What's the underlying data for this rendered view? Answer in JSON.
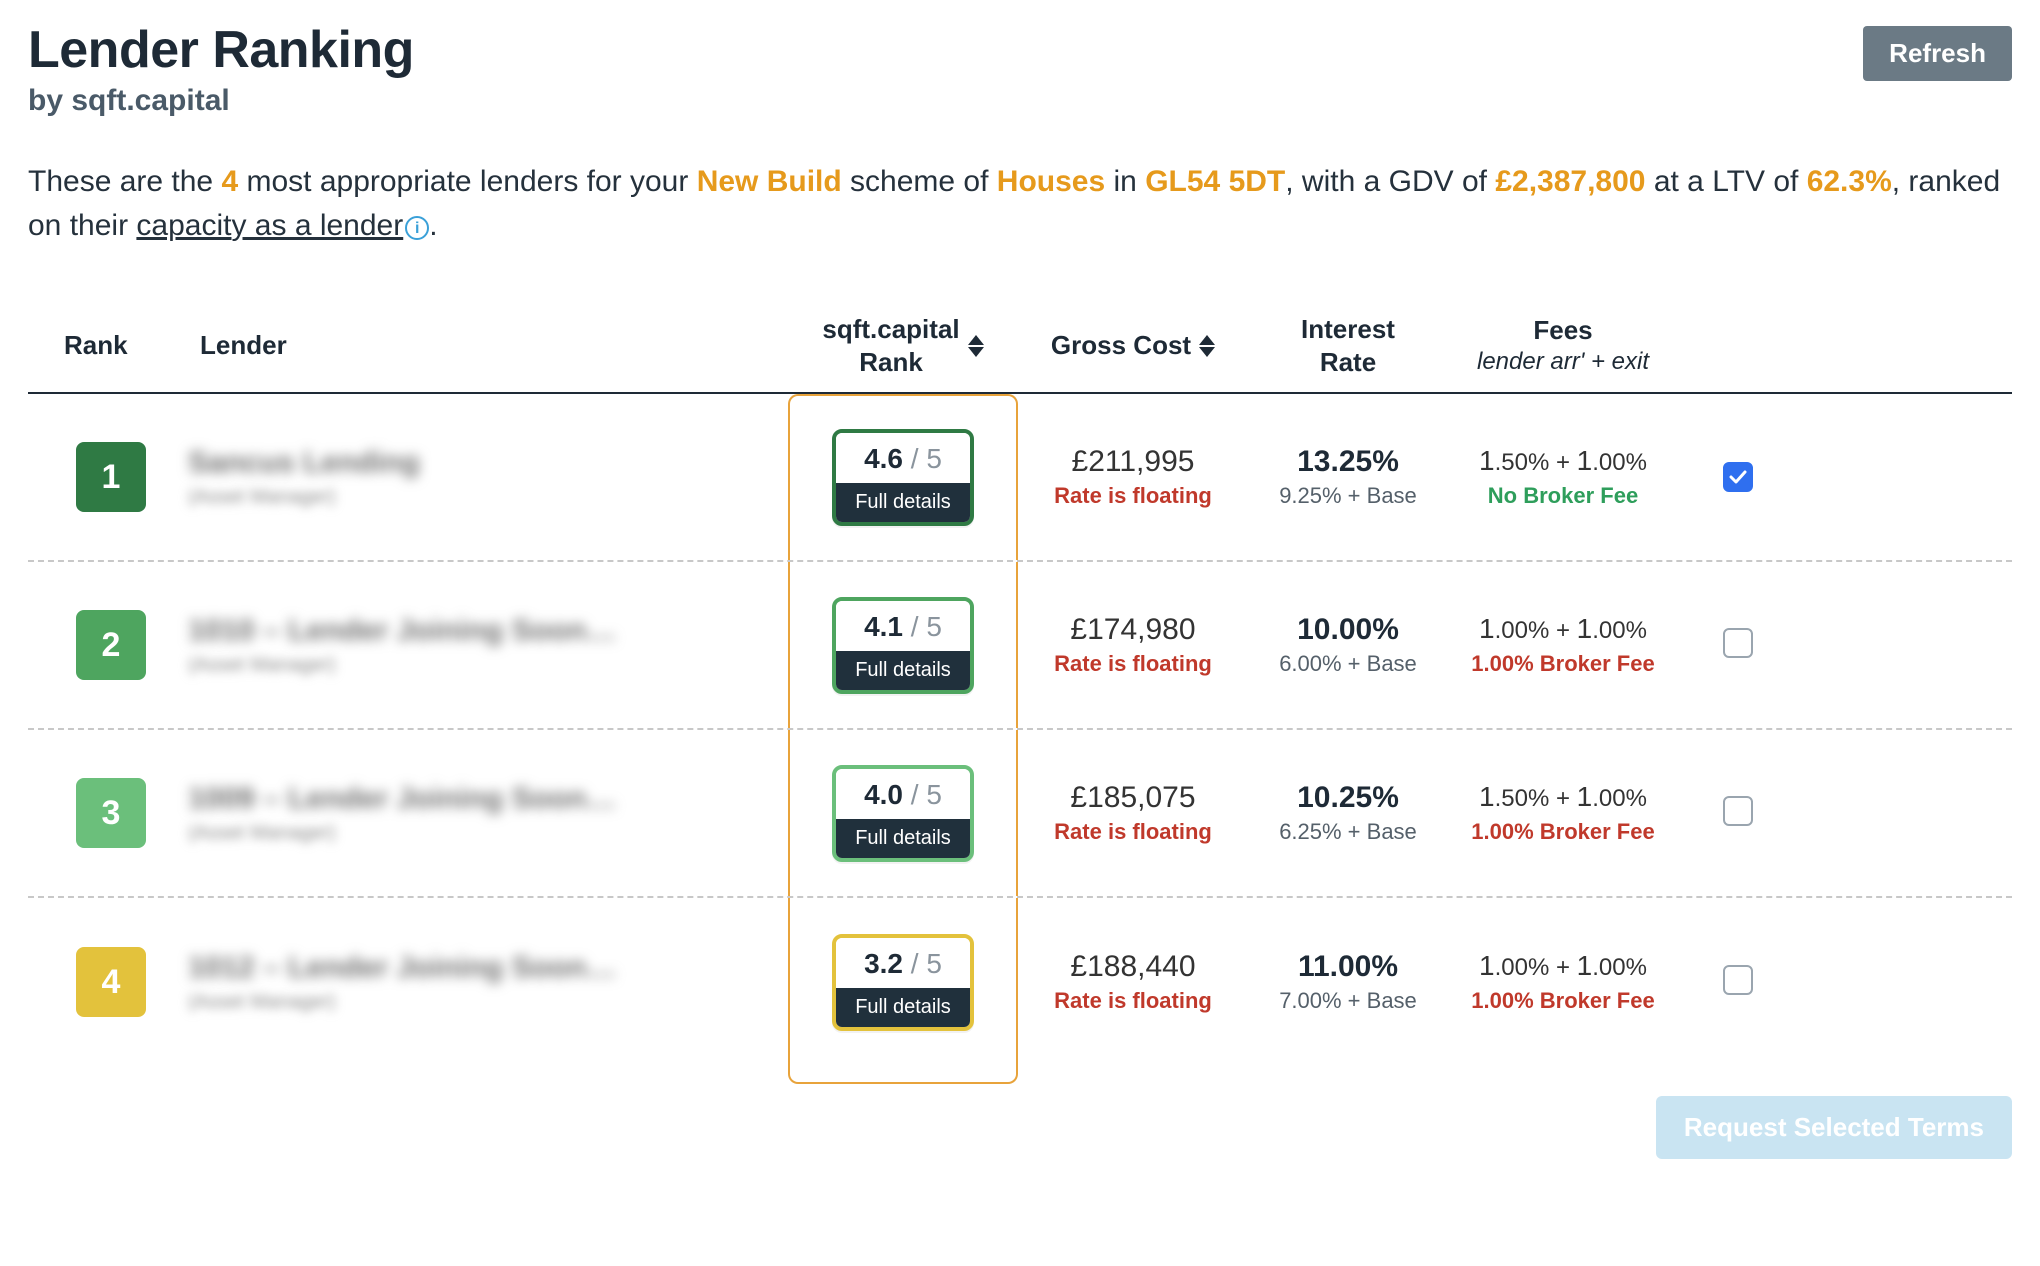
{
  "colors": {
    "text": "#1e2a36",
    "subtext": "#4a5a68",
    "highlight": "#e69a1c",
    "refresh_bg": "#6b7a85",
    "danger": "#c0392b",
    "ok": "#2e9e5b",
    "col_border": "#e8a33b",
    "rank_badge": [
      "#2f7a44",
      "#4ea55f",
      "#6bbf7b",
      "#e3c23c"
    ],
    "card_border": [
      "#2f7a44",
      "#4ea55f",
      "#6bbf7b",
      "#e3c23c"
    ],
    "request_bg": "#c9e4f2",
    "checkbox_on": "#2f6fef"
  },
  "header": {
    "title": "Lender Ranking",
    "subtitle": "by sqft.capital",
    "refresh": "Refresh"
  },
  "intro": {
    "pre": "These are the ",
    "count": "4",
    "mid1": " most appropriate lenders for your ",
    "scheme": "New Build",
    "mid2": " scheme of ",
    "unit": "Houses",
    "mid3": " in ",
    "postcode": "GL54 5DT",
    "mid4": ", with a GDV of ",
    "gdv": "£2,387,800",
    "mid5": " at a LTV of ",
    "ltv": "62.3%",
    "mid6": ", ranked on their ",
    "link": "capacity as a lender",
    "tail": "."
  },
  "columns": {
    "c1": "Rank",
    "c2": "Lender",
    "c3a": "sqft.capital",
    "c3b": "Rank",
    "c4": "Gross Cost",
    "c5a": "Interest",
    "c5b": "Rate",
    "c6a": "Fees",
    "c6b": "lender arr' + exit"
  },
  "rows": [
    {
      "rank": "1",
      "lender_name": "Sancus Lending",
      "lender_sub": "(Asset Manager)",
      "score": "4.6",
      "score_denom": " / 5",
      "details_label": "Full details",
      "cost": "£211,995",
      "cost_note": "Rate is floating",
      "rate": "13.25%",
      "rate_sub": "9.25% + Base",
      "fee_a_big": "1",
      "fee_a_small": ".50%",
      "fee_plus": " + ",
      "fee_b_big": "1",
      "fee_b_small": ".00%",
      "fee_note": "No Broker Fee",
      "fee_note_color": "ok",
      "checked": true
    },
    {
      "rank": "2",
      "lender_name": "1010 – Lender Joining Soon…",
      "lender_sub": "(Asset Manager)",
      "score": "4.1",
      "score_denom": " / 5",
      "details_label": "Full details",
      "cost": "£174,980",
      "cost_note": "Rate is floating",
      "rate": "10.00%",
      "rate_sub": "6.00% + Base",
      "fee_a_big": "1",
      "fee_a_small": ".00%",
      "fee_plus": " + ",
      "fee_b_big": "1",
      "fee_b_small": ".00%",
      "fee_note": "1.00% Broker Fee",
      "fee_note_color": "danger",
      "checked": false
    },
    {
      "rank": "3",
      "lender_name": "1009 – Lender Joining Soon…",
      "lender_sub": "(Asset Manager)",
      "score": "4.0",
      "score_denom": " / 5",
      "details_label": "Full details",
      "cost": "£185,075",
      "cost_note": "Rate is floating",
      "rate": "10.25%",
      "rate_sub": "6.25% + Base",
      "fee_a_big": "1",
      "fee_a_small": ".50%",
      "fee_plus": " + ",
      "fee_b_big": "1",
      "fee_b_small": ".00%",
      "fee_note": "1.00% Broker Fee",
      "fee_note_color": "danger",
      "checked": false
    },
    {
      "rank": "4",
      "lender_name": "1012 – Lender Joining Soon…",
      "lender_sub": "(Asset Manager)",
      "score": "3.2",
      "score_denom": " / 5",
      "details_label": "Full details",
      "cost": "£188,440",
      "cost_note": "Rate is floating",
      "rate": "11.00%",
      "rate_sub": "7.00% + Base",
      "fee_a_big": "1",
      "fee_a_small": ".00%",
      "fee_plus": " + ",
      "fee_b_big": "1",
      "fee_b_small": ".00%",
      "fee_note": "1.00% Broker Fee",
      "fee_note_color": "danger",
      "checked": false
    }
  ],
  "footer": {
    "request": "Request Selected Terms"
  }
}
